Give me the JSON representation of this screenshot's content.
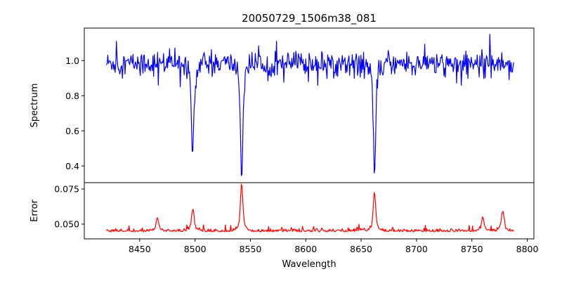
{
  "chart_data": [
    {
      "type": "line",
      "title": "20050729_1506m38_081",
      "ylabel": "Spectrum",
      "xlim": [
        8400,
        8806
      ],
      "ylim": [
        0.305,
        1.185
      ],
      "yticks": [
        0.4,
        0.6,
        0.8,
        1.0
      ],
      "ytick_labels": [
        "0.4",
        "0.6",
        "0.8",
        "1.0"
      ],
      "series": [
        {
          "color": "#0000ff",
          "continuum": 0.985,
          "noise_amplitude": 0.06,
          "x_range": [
            8420,
            8788
          ],
          "absorption_lines": [
            {
              "center": 8498.0,
              "min": 0.485
            },
            {
              "center": 8542.1,
              "min": 0.345
            },
            {
              "center": 8662.1,
              "min": 0.36
            }
          ],
          "notable_points": [
            {
              "x": 8467,
              "y": 0.86
            },
            {
              "x": 8766,
              "y": 1.15
            },
            {
              "x": 8429,
              "y": 1.11
            }
          ]
        }
      ]
    },
    {
      "type": "line",
      "xlabel": "Wavelength",
      "ylabel": "Error",
      "xlim": [
        8400,
        8806
      ],
      "ylim": [
        0.0395,
        0.0795
      ],
      "xticks": [
        8450,
        8500,
        8550,
        8600,
        8650,
        8700,
        8750,
        8800
      ],
      "xtick_labels": [
        "8450",
        "8500",
        "8550",
        "8600",
        "8650",
        "8700",
        "8750",
        "8800"
      ],
      "yticks": [
        0.05,
        0.075
      ],
      "ytick_labels": [
        "0.050",
        "0.075"
      ],
      "series": [
        {
          "color": "#ff0000",
          "baseline": 0.0445,
          "noise_amplitude": 0.0015,
          "x_range": [
            8420,
            8788
          ],
          "peaks": [
            {
              "center": 8498.0,
              "max": 0.0605
            },
            {
              "center": 8542.1,
              "max": 0.0785
            },
            {
              "center": 8662.1,
              "max": 0.0725
            },
            {
              "center": 8466.0,
              "max": 0.0545
            },
            {
              "center": 8778.0,
              "max": 0.059
            },
            {
              "center": 8760.0,
              "max": 0.0545
            }
          ]
        }
      ]
    }
  ]
}
